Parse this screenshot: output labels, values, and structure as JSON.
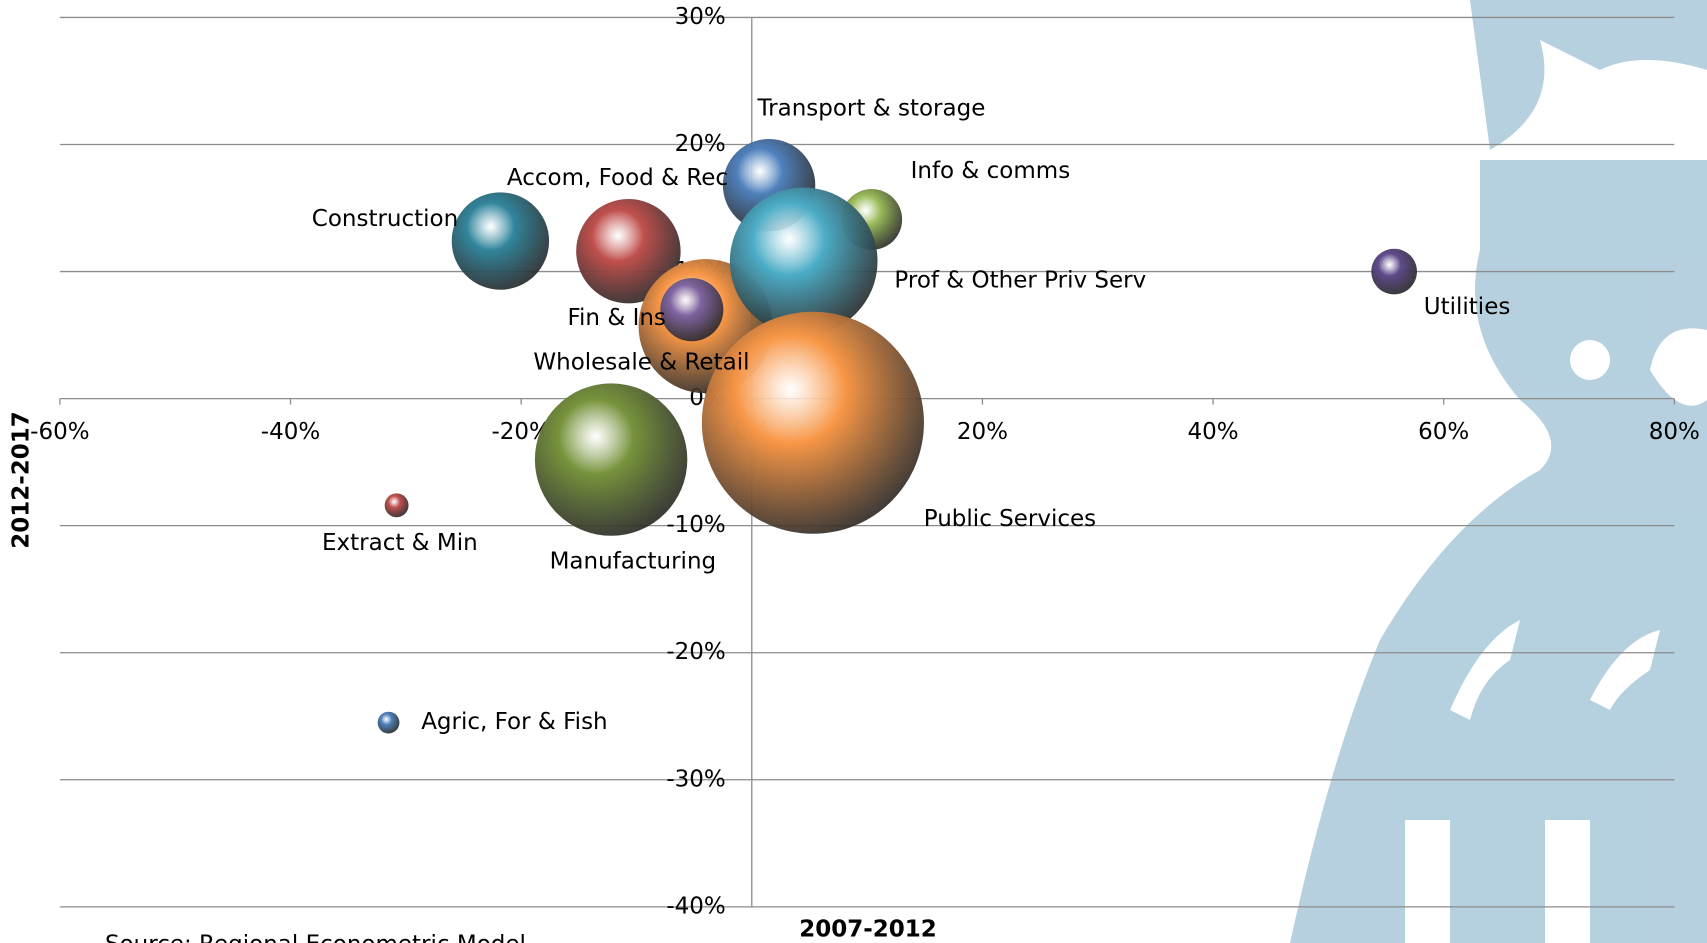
{
  "chart_data": {
    "type": "bubble",
    "x_label": "2007-2012",
    "y_label": "2012-2017",
    "source": "Source: Regional Econometric Model",
    "categories": [
      "Construction",
      "Accom, Food & Rec",
      "Wholesale & Retail",
      "Transport & storage",
      "Info & comms",
      "Prof & Other Priv Serv",
      "Fin & Ins",
      "Utilities",
      "Public Services",
      "Manufacturing",
      "Extract & Min",
      "Agric, For & Fish"
    ],
    "x": [
      -21.8,
      -10.7,
      -4.0,
      1.5,
      10.4,
      4.5,
      -5.2,
      55.7,
      5.3,
      -12.2,
      -30.8,
      -31.5
    ],
    "y": [
      12.4,
      11.6,
      5.7,
      16.8,
      14.1,
      10.8,
      7.0,
      10.0,
      -1.9,
      -4.8,
      -8.4,
      -25.5
    ],
    "sizes": [
      20,
      23,
      38,
      18,
      7.8,
      46,
      8.4,
      4.4,
      104,
      49,
      1.2,
      1.0
    ],
    "colors": [
      "#31859c",
      "#c0504d",
      "#f79646",
      "#4f81bd",
      "#9bbb59",
      "#4bacc6",
      "#8064a2",
      "#5f4b8b",
      "#f79646",
      "#77933c",
      "#c0504d",
      "#4f81bd"
    ],
    "xlim": [
      -60,
      80
    ],
    "xticks": [
      {
        "value": -60,
        "label": "-60%"
      },
      {
        "value": -40,
        "label": "-40%"
      },
      {
        "value": -20,
        "label": "-20%"
      },
      {
        "value": 0,
        "label": "0%"
      },
      {
        "value": 20,
        "label": "20%"
      },
      {
        "value": 40,
        "label": "40%"
      },
      {
        "value": 60,
        "label": "60%"
      },
      {
        "value": 80,
        "label": "80%"
      }
    ],
    "ylim": [
      -40,
      30
    ],
    "yticks": [
      {
        "value": -40,
        "label": "-40%"
      },
      {
        "value": -30,
        "label": "-30%"
      },
      {
        "value": -20,
        "label": "-20%"
      },
      {
        "value": -10,
        "label": "-10%"
      },
      {
        "value": 0,
        "label": "0%"
      },
      {
        "value": 10,
        "label": "10%"
      },
      {
        "value": 20,
        "label": "20%"
      },
      {
        "value": 30,
        "label": "30%"
      }
    ],
    "grid": true
  }
}
